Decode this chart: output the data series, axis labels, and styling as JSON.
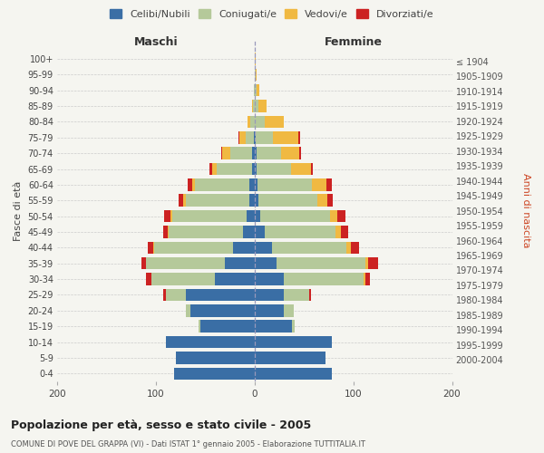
{
  "age_groups": [
    "0-4",
    "5-9",
    "10-14",
    "15-19",
    "20-24",
    "25-29",
    "30-34",
    "35-39",
    "40-44",
    "45-49",
    "50-54",
    "55-59",
    "60-64",
    "65-69",
    "70-74",
    "75-79",
    "80-84",
    "85-89",
    "90-94",
    "95-99",
    "100+"
  ],
  "birth_years": [
    "2000-2004",
    "1995-1999",
    "1990-1994",
    "1985-1989",
    "1980-1984",
    "1975-1979",
    "1970-1974",
    "1965-1969",
    "1960-1964",
    "1955-1959",
    "1950-1954",
    "1945-1949",
    "1940-1944",
    "1935-1939",
    "1930-1934",
    "1925-1929",
    "1920-1924",
    "1915-1919",
    "1910-1914",
    "1905-1909",
    "≤ 1904"
  ],
  "colors": {
    "celibi": "#3a6ea5",
    "coniugati": "#b5c99a",
    "vedovi": "#f0b942",
    "divorziati": "#cc2222"
  },
  "legend_labels": [
    "Celibi/Nubili",
    "Coniugati/e",
    "Vedovi/e",
    "Divorziati/e"
  ],
  "legend_colors": [
    "#3a6ea5",
    "#b5c99a",
    "#f0b942",
    "#cc2222"
  ],
  "maschi": {
    "celibi": [
      82,
      80,
      90,
      55,
      65,
      70,
      40,
      30,
      22,
      12,
      8,
      5,
      5,
      3,
      3,
      1,
      0,
      0,
      0,
      0,
      0
    ],
    "coniugati": [
      0,
      0,
      0,
      2,
      5,
      20,
      65,
      80,
      80,
      75,
      75,
      65,
      55,
      35,
      22,
      8,
      4,
      2,
      1,
      0,
      0
    ],
    "vedovi": [
      0,
      0,
      0,
      0,
      0,
      0,
      0,
      0,
      1,
      1,
      2,
      2,
      3,
      5,
      8,
      6,
      3,
      1,
      0,
      0,
      0
    ],
    "divorziati": [
      0,
      0,
      0,
      0,
      0,
      3,
      5,
      5,
      5,
      5,
      7,
      5,
      5,
      3,
      1,
      1,
      0,
      0,
      0,
      0,
      0
    ]
  },
  "femmine": {
    "nubili": [
      78,
      72,
      78,
      38,
      30,
      30,
      30,
      22,
      18,
      10,
      6,
      4,
      3,
      2,
      2,
      1,
      0,
      0,
      0,
      0,
      0
    ],
    "coniugate": [
      0,
      0,
      0,
      3,
      10,
      25,
      80,
      90,
      75,
      72,
      70,
      60,
      55,
      35,
      25,
      18,
      10,
      4,
      2,
      1,
      0
    ],
    "vedove": [
      0,
      0,
      0,
      0,
      0,
      0,
      2,
      3,
      5,
      5,
      8,
      10,
      15,
      20,
      18,
      25,
      20,
      8,
      3,
      1,
      1
    ],
    "divorziate": [
      0,
      0,
      0,
      0,
      0,
      2,
      5,
      10,
      8,
      8,
      8,
      5,
      5,
      2,
      2,
      2,
      0,
      0,
      0,
      0,
      0
    ]
  },
  "xlim": 200,
  "title": "Popolazione per età, sesso e stato civile - 2005",
  "subtitle": "COMUNE DI POVE DEL GRAPPA (VI) - Dati ISTAT 1° gennaio 2005 - Elaborazione TUTTITALIA.IT",
  "ylabel_left": "Fasce di età",
  "ylabel_right": "Anni di nascita",
  "xlabel_maschi": "Maschi",
  "xlabel_femmine": "Femmine",
  "background_color": "#f5f5f0",
  "grid_color": "#cccccc"
}
